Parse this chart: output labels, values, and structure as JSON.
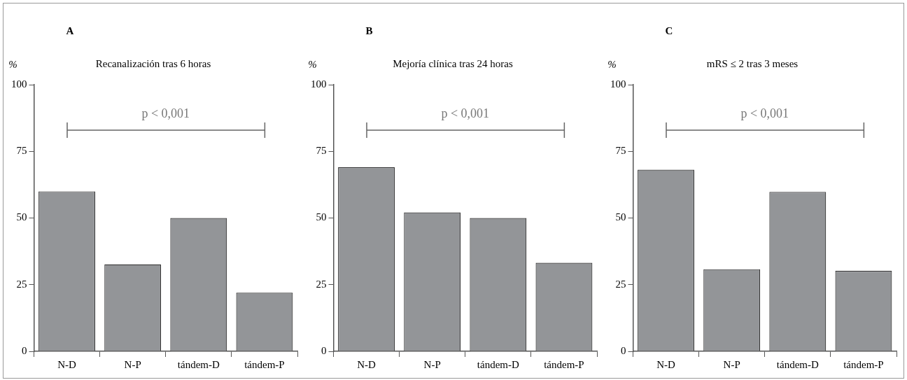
{
  "chart_data": [
    {
      "type": "bar",
      "title": "Recanalización tras 6 horas",
      "ylabel": "%",
      "annotations": [
        "A",
        "p < 0,001"
      ],
      "categories": [
        "N-D",
        "N-P",
        "tándem-D",
        "tándem-P"
      ],
      "values": [
        60,
        32.6,
        50,
        22
      ],
      "color": "#939598",
      "ylim": [
        0,
        100
      ],
      "yticks": [
        0,
        25,
        50,
        75,
        100
      ],
      "grid": false
    },
    {
      "type": "bar",
      "title": "Mejoría clínica tras 24 horas",
      "ylabel": "%",
      "annotations": [
        "B",
        "p < 0,001"
      ],
      "categories": [
        "N-D",
        "N-P",
        "tándem-D",
        "tándem-P"
      ],
      "values": [
        69,
        52.1,
        50,
        33.2
      ],
      "color": "#939598",
      "ylim": [
        0,
        100
      ],
      "yticks": [
        0,
        25,
        50,
        75,
        100
      ],
      "grid": false
    },
    {
      "type": "bar",
      "title": "mRS ≤ 2 tras 3 meses",
      "ylabel": "%",
      "annotations": [
        "C",
        "p < 0,001"
      ],
      "categories": [
        "N-D",
        "N-P",
        "tándem-D",
        "tándem-P"
      ],
      "values": [
        68.1,
        30.8,
        59.8,
        30.2
      ],
      "color": "#939598",
      "ylim": [
        0,
        100
      ],
      "yticks": [
        0,
        25,
        50,
        75,
        100
      ],
      "grid": false
    }
  ]
}
